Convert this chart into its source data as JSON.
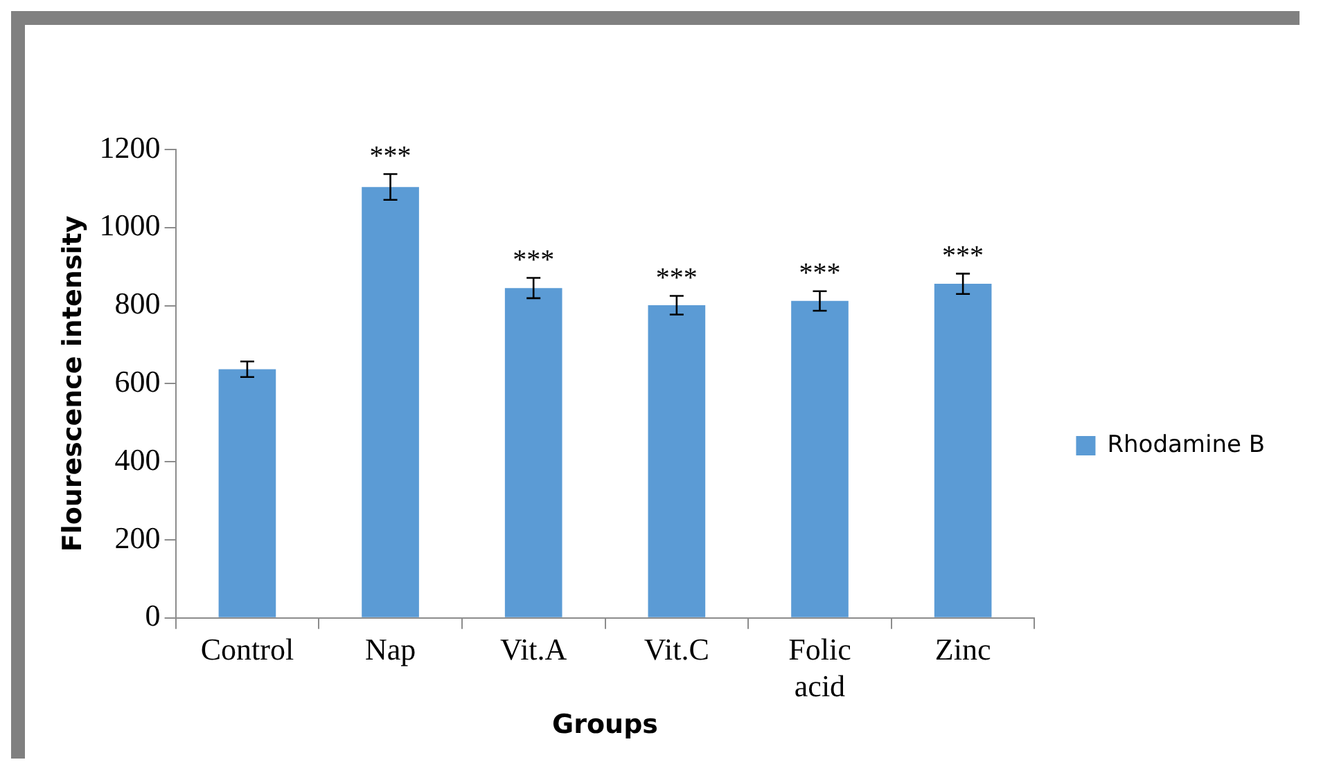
{
  "chart_data": {
    "type": "bar",
    "xlabel": "Groups",
    "ylabel": "Flourescence intensity",
    "categories": [
      "Control",
      "Nap",
      "Vit.A",
      "Vit.C",
      "Folic acid",
      "Zinc"
    ],
    "series": [
      {
        "name": "Rhodamine B",
        "color": "#5b9bd5",
        "values": [
          637,
          1104,
          845,
          801,
          812,
          856
        ],
        "errors": [
          20,
          33,
          26,
          24,
          25,
          26
        ],
        "value_labels": [
          null,
          "***",
          "***",
          "***",
          "***",
          "***"
        ]
      }
    ],
    "ylim": [
      0,
      1200
    ],
    "yticks": [
      0,
      200,
      400,
      600,
      800,
      1000,
      1200
    ],
    "grid": false,
    "legend": "right"
  }
}
